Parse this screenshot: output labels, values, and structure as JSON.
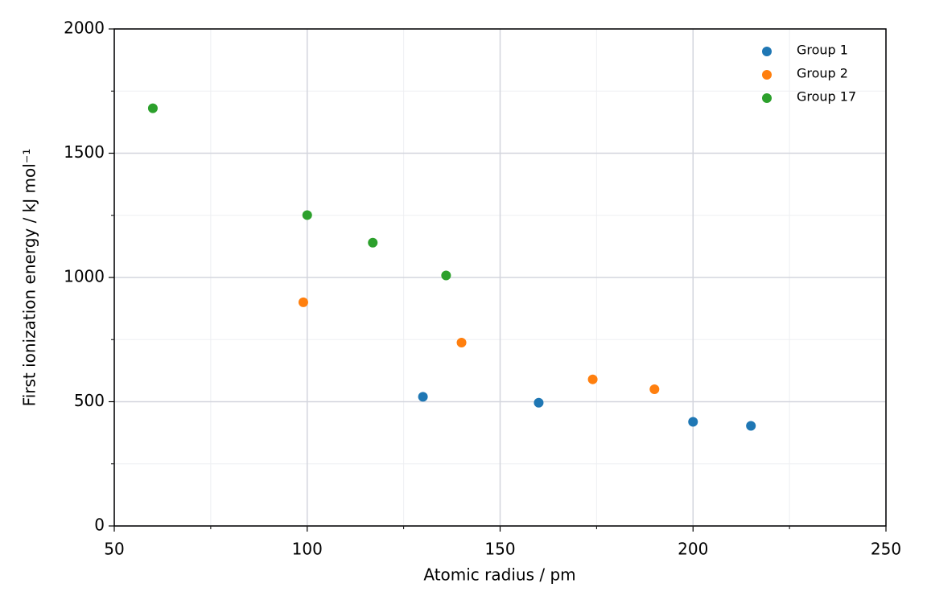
{
  "chart_data": {
    "type": "scatter",
    "x_label": "Atomic radius / pm",
    "y_label": "First ionization energy / kJ mol⁻¹",
    "xlim": [
      50,
      250
    ],
    "xticks": [
      50,
      100,
      150,
      200,
      250
    ],
    "ylim": [
      0,
      2000
    ],
    "yticks": [
      0,
      500,
      1000,
      1500,
      2000
    ],
    "grid": true,
    "minor_grid": true,
    "legend": "upper right",
    "series": [
      {
        "name": "Group 1",
        "color": "#1f77b4",
        "x": [
          130,
          160,
          200,
          215
        ],
        "values": [
          520,
          496,
          419,
          403
        ]
      },
      {
        "name": "Group 2",
        "color": "#ff7f0e",
        "x": [
          99,
          140,
          174,
          190
        ],
        "values": [
          900,
          738,
          590,
          550
        ]
      },
      {
        "name": "Group 17",
        "color": "#2ca02c",
        "x": [
          60,
          100,
          117,
          136
        ],
        "values": [
          1681,
          1251,
          1140,
          1008
        ]
      }
    ]
  }
}
